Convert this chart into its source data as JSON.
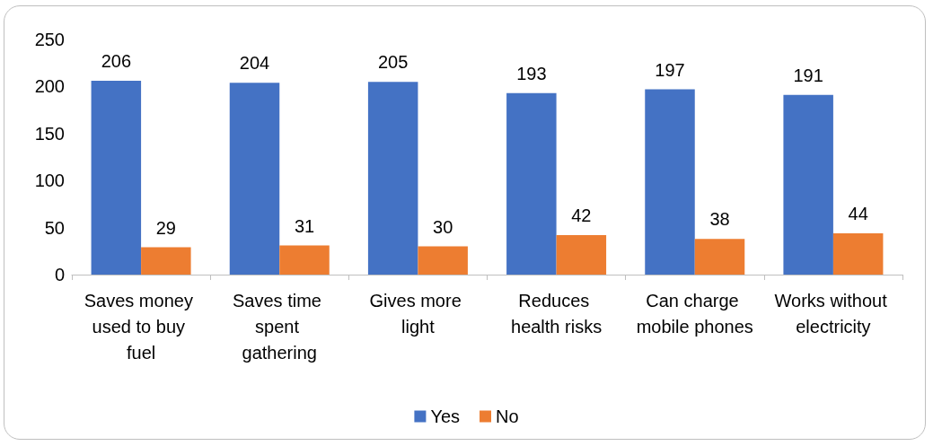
{
  "chart_data": {
    "type": "bar",
    "categories": [
      "Saves money used to buy fuel",
      "Saves time spent gathering",
      "Gives more light",
      "Reduces health risks",
      "Can charge mobile phones",
      "Works without electricity"
    ],
    "series": [
      {
        "name": "Yes",
        "color": "#4472c4",
        "values": [
          206,
          204,
          205,
          193,
          197,
          191
        ]
      },
      {
        "name": "No",
        "color": "#ed7d31",
        "values": [
          29,
          31,
          30,
          42,
          38,
          44
        ]
      }
    ],
    "ylim": [
      0,
      250
    ],
    "yticks": [
      0,
      50,
      100,
      150,
      200,
      250
    ],
    "grid": false,
    "legend": "bottom",
    "data_labels": true
  }
}
